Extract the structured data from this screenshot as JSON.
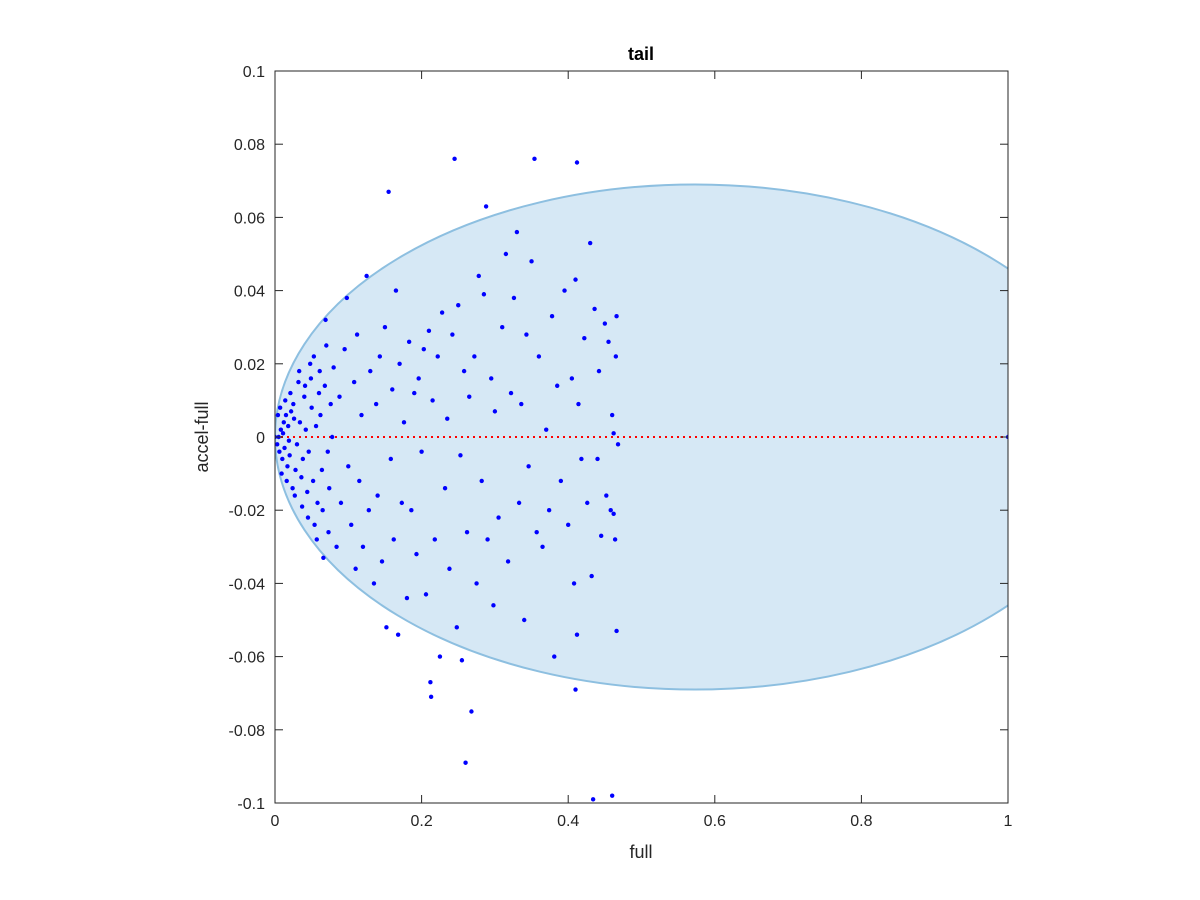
{
  "chart_data": {
    "type": "scatter",
    "title": "tail",
    "xlabel": "full",
    "ylabel": "accel-full",
    "xlim": [
      0,
      1
    ],
    "ylim": [
      -0.1,
      0.1
    ],
    "xticks": [
      0,
      0.2,
      0.4,
      0.6,
      0.8,
      1
    ],
    "xtick_labels": [
      "0",
      "0.2",
      "0.4",
      "0.6",
      "0.8",
      "1"
    ],
    "yticks": [
      -0.1,
      -0.08,
      -0.06,
      -0.04,
      -0.02,
      0,
      0.02,
      0.04,
      0.06,
      0.08,
      0.1
    ],
    "ytick_labels": [
      "-0.1",
      "-0.08",
      "-0.06",
      "-0.04",
      "-0.02",
      "0",
      "0.02",
      "0.04",
      "0.06",
      "0.08",
      "0.1"
    ],
    "grid": false,
    "colors": {
      "points": "#0000ff",
      "region_fill": "#d6e8f5",
      "region_edge": "#8dbfe0",
      "reference_line": "#ff0000",
      "axes": "#262626"
    },
    "region": {
      "shape": "ellipse",
      "center": [
        0.573,
        0
      ],
      "semi_axes": [
        0.573,
        0.069
      ],
      "clip_x": [
        0,
        1
      ]
    },
    "reference_line": {
      "y": 0,
      "x": [
        0,
        1
      ],
      "style": "dotted"
    },
    "series": [
      {
        "points": [
          [
            0.004,
            0.006
          ],
          [
            0.006,
            -0.004
          ],
          [
            0.008,
            0.002
          ],
          [
            0.005,
            0.0
          ],
          [
            0.01,
            -0.006
          ],
          [
            0.012,
            0.004
          ],
          [
            0.003,
            -0.002
          ],
          [
            0.007,
            0.008
          ],
          [
            0.009,
            -0.01
          ],
          [
            0.011,
            0.001
          ],
          [
            0.013,
            -0.003
          ],
          [
            0.015,
            0.006
          ],
          [
            0.017,
            -0.008
          ],
          [
            0.014,
            0.01
          ],
          [
            0.016,
            -0.012
          ],
          [
            0.018,
            0.003
          ],
          [
            0.02,
            -0.005
          ],
          [
            0.022,
            0.007
          ],
          [
            0.019,
            -0.001
          ],
          [
            0.021,
            0.012
          ],
          [
            0.024,
            -0.014
          ],
          [
            0.026,
            0.005
          ],
          [
            0.028,
            -0.009
          ],
          [
            0.025,
            0.009
          ],
          [
            0.03,
            -0.002
          ],
          [
            0.032,
            0.015
          ],
          [
            0.027,
            -0.016
          ],
          [
            0.034,
            0.004
          ],
          [
            0.036,
            -0.011
          ],
          [
            0.033,
            0.018
          ],
          [
            0.038,
            -0.006
          ],
          [
            0.04,
            0.011
          ],
          [
            0.037,
            -0.019
          ],
          [
            0.042,
            0.002
          ],
          [
            0.044,
            -0.015
          ],
          [
            0.041,
            0.014
          ],
          [
            0.046,
            -0.004
          ],
          [
            0.048,
            0.02
          ],
          [
            0.045,
            -0.022
          ],
          [
            0.05,
            0.008
          ],
          [
            0.052,
            -0.012
          ],
          [
            0.049,
            0.016
          ],
          [
            0.054,
            -0.024
          ],
          [
            0.056,
            0.003
          ],
          [
            0.053,
            0.022
          ],
          [
            0.058,
            -0.018
          ],
          [
            0.06,
            0.012
          ],
          [
            0.057,
            -0.028
          ],
          [
            0.062,
            0.006
          ],
          [
            0.064,
            -0.009
          ],
          [
            0.061,
            0.018
          ],
          [
            0.066,
            -0.033
          ],
          [
            0.068,
            0.014
          ],
          [
            0.065,
            -0.02
          ],
          [
            0.07,
            0.025
          ],
          [
            0.072,
            -0.004
          ],
          [
            0.069,
            0.032
          ],
          [
            0.074,
            -0.014
          ],
          [
            0.076,
            0.009
          ],
          [
            0.073,
            -0.026
          ],
          [
            0.08,
            0.019
          ],
          [
            0.084,
            -0.03
          ],
          [
            0.078,
            0.0
          ],
          [
            0.088,
            0.011
          ],
          [
            0.09,
            -0.018
          ],
          [
            0.095,
            0.024
          ],
          [
            0.1,
            -0.008
          ],
          [
            0.098,
            0.038
          ],
          [
            0.104,
            -0.024
          ],
          [
            0.108,
            0.015
          ],
          [
            0.11,
            -0.036
          ],
          [
            0.112,
            0.028
          ],
          [
            0.115,
            -0.012
          ],
          [
            0.118,
            0.006
          ],
          [
            0.12,
            -0.03
          ],
          [
            0.125,
            0.044
          ],
          [
            0.128,
            -0.02
          ],
          [
            0.13,
            0.018
          ],
          [
            0.135,
            -0.04
          ],
          [
            0.138,
            0.009
          ],
          [
            0.14,
            -0.016
          ],
          [
            0.143,
            0.022
          ],
          [
            0.146,
            -0.034
          ],
          [
            0.15,
            0.03
          ],
          [
            0.152,
            -0.052
          ],
          [
            0.155,
            0.067
          ],
          [
            0.158,
            -0.006
          ],
          [
            0.16,
            0.013
          ],
          [
            0.162,
            -0.028
          ],
          [
            0.165,
            0.04
          ],
          [
            0.168,
            -0.054
          ],
          [
            0.17,
            0.02
          ],
          [
            0.173,
            -0.018
          ],
          [
            0.176,
            0.004
          ],
          [
            0.18,
            -0.044
          ],
          [
            0.183,
            0.026
          ],
          [
            0.186,
            -0.02
          ],
          [
            0.19,
            0.012
          ],
          [
            0.193,
            -0.032
          ],
          [
            0.196,
            0.016
          ],
          [
            0.2,
            -0.004
          ],
          [
            0.203,
            0.024
          ],
          [
            0.206,
            -0.043
          ],
          [
            0.21,
            0.029
          ],
          [
            0.212,
            -0.067
          ],
          [
            0.213,
            -0.071
          ],
          [
            0.215,
            0.01
          ],
          [
            0.218,
            -0.028
          ],
          [
            0.222,
            0.022
          ],
          [
            0.225,
            -0.06
          ],
          [
            0.228,
            0.034
          ],
          [
            0.232,
            -0.014
          ],
          [
            0.235,
            0.005
          ],
          [
            0.238,
            -0.036
          ],
          [
            0.242,
            0.028
          ],
          [
            0.245,
            0.076
          ],
          [
            0.248,
            -0.052
          ],
          [
            0.25,
            0.036
          ],
          [
            0.253,
            -0.005
          ],
          [
            0.255,
            -0.061
          ],
          [
            0.258,
            0.018
          ],
          [
            0.26,
            -0.089
          ],
          [
            0.262,
            -0.026
          ],
          [
            0.265,
            0.011
          ],
          [
            0.268,
            -0.075
          ],
          [
            0.272,
            0.022
          ],
          [
            0.275,
            -0.04
          ],
          [
            0.278,
            0.044
          ],
          [
            0.282,
            -0.012
          ],
          [
            0.285,
            0.039
          ],
          [
            0.288,
            0.063
          ],
          [
            0.29,
            -0.028
          ],
          [
            0.295,
            0.016
          ],
          [
            0.298,
            -0.046
          ],
          [
            0.3,
            0.007
          ],
          [
            0.305,
            -0.022
          ],
          [
            0.31,
            0.03
          ],
          [
            0.315,
            0.05
          ],
          [
            0.318,
            -0.034
          ],
          [
            0.322,
            0.012
          ],
          [
            0.326,
            0.038
          ],
          [
            0.33,
            0.056
          ],
          [
            0.333,
            -0.018
          ],
          [
            0.336,
            0.009
          ],
          [
            0.34,
            -0.05
          ],
          [
            0.343,
            0.028
          ],
          [
            0.346,
            -0.008
          ],
          [
            0.35,
            0.048
          ],
          [
            0.354,
            0.076
          ],
          [
            0.357,
            -0.026
          ],
          [
            0.36,
            0.022
          ],
          [
            0.365,
            -0.03
          ],
          [
            0.37,
            0.002
          ],
          [
            0.374,
            -0.02
          ],
          [
            0.378,
            0.033
          ],
          [
            0.381,
            -0.06
          ],
          [
            0.385,
            0.014
          ],
          [
            0.39,
            -0.012
          ],
          [
            0.395,
            0.04
          ],
          [
            0.4,
            -0.024
          ],
          [
            0.405,
            0.016
          ],
          [
            0.408,
            -0.04
          ],
          [
            0.41,
            0.043
          ],
          [
            0.412,
            0.075
          ],
          [
            0.412,
            -0.054
          ],
          [
            0.41,
            -0.069
          ],
          [
            0.414,
            0.009
          ],
          [
            0.418,
            -0.006
          ],
          [
            0.422,
            0.027
          ],
          [
            0.426,
            -0.018
          ],
          [
            0.43,
            0.053
          ],
          [
            0.432,
            -0.038
          ],
          [
            0.434,
            -0.099
          ],
          [
            0.436,
            0.035
          ],
          [
            0.44,
            -0.006
          ],
          [
            0.442,
            0.018
          ],
          [
            0.445,
            -0.027
          ],
          [
            0.45,
            0.031
          ],
          [
            0.452,
            -0.016
          ],
          [
            0.455,
            0.026
          ],
          [
            0.458,
            -0.02
          ],
          [
            0.46,
            -0.098
          ],
          [
            0.462,
            0.001
          ],
          [
            0.464,
            -0.028
          ],
          [
            0.466,
            0.033
          ],
          [
            0.466,
            -0.053
          ],
          [
            0.468,
            -0.002
          ],
          [
            0.465,
            0.022
          ],
          [
            0.462,
            -0.021
          ],
          [
            0.46,
            0.006
          ],
          [
            0.0,
            0.0
          ],
          [
            1.0,
            0.0
          ]
        ]
      }
    ]
  }
}
